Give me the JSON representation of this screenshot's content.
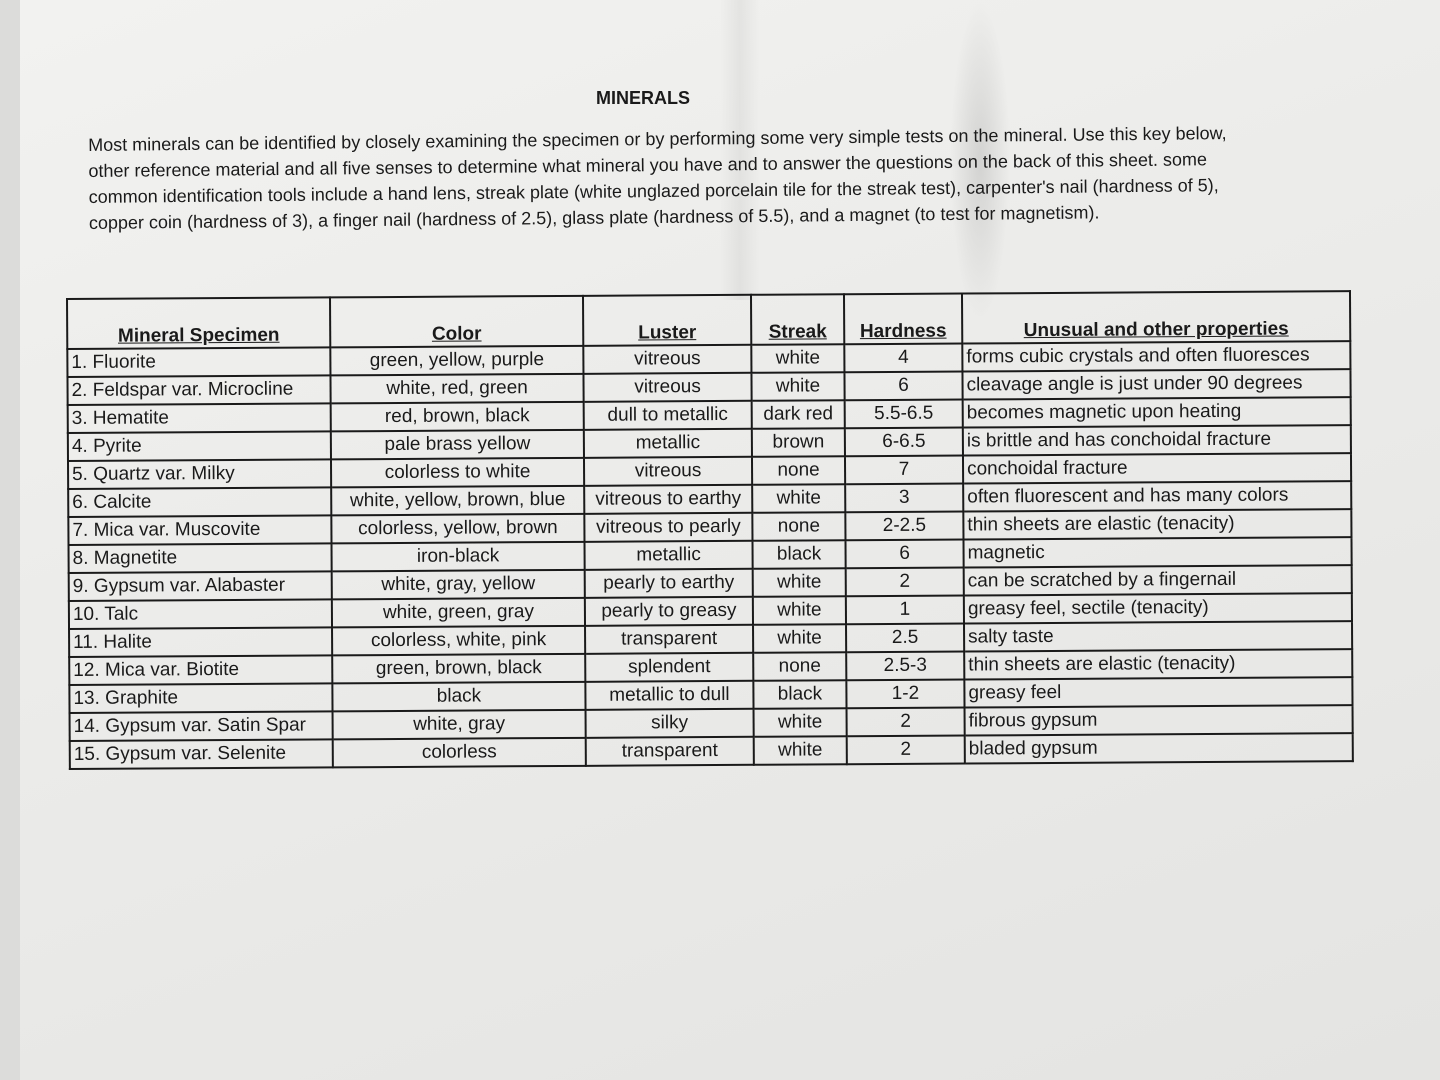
{
  "title": "MINERALS",
  "intro": "Most minerals can be identified by closely examining the specimen or by performing some very simple tests on the mineral. Use this key below, other reference material and all five senses to determine what mineral you have and to answer the questions on the back of this sheet. some common identification tools include a hand lens, streak plate (white unglazed porcelain tile for the streak test), carpenter's nail (hardness of 5), copper coin (hardness of 3), a finger nail (hardness of 2.5), glass plate (hardness of 5.5), and a magnet (to test for magnetism).",
  "table": {
    "headers": [
      "Mineral Specimen",
      "Color",
      "Luster",
      "Streak",
      "Hardness",
      "Unusual and other properties"
    ],
    "rows": [
      [
        "1. Fluorite",
        "green, yellow, purple",
        "vitreous",
        "white",
        "4",
        "forms cubic crystals and often fluoresces"
      ],
      [
        "2. Feldspar var. Microcline",
        "white, red, green",
        "vitreous",
        "white",
        "6",
        "cleavage angle is just under 90 degrees"
      ],
      [
        "3. Hematite",
        "red, brown, black",
        "dull to metallic",
        "dark red",
        "5.5-6.5",
        "becomes magnetic upon heating"
      ],
      [
        "4. Pyrite",
        "pale brass yellow",
        "metallic",
        "brown",
        "6-6.5",
        "is brittle and has conchoidal fracture"
      ],
      [
        "5. Quartz var. Milky",
        "colorless to white",
        "vitreous",
        "none",
        "7",
        "conchoidal fracture"
      ],
      [
        "6. Calcite",
        "white, yellow, brown, blue",
        "vitreous to earthy",
        "white",
        "3",
        "often fluorescent and has many colors"
      ],
      [
        "7. Mica var. Muscovite",
        "colorless, yellow, brown",
        "vitreous to pearly",
        "none",
        "2-2.5",
        "thin sheets are elastic (tenacity)"
      ],
      [
        "8. Magnetite",
        "iron-black",
        "metallic",
        "black",
        "6",
        "magnetic"
      ],
      [
        "9. Gypsum var. Alabaster",
        "white, gray, yellow",
        "pearly to earthy",
        "white",
        "2",
        "can be scratched by a fingernail"
      ],
      [
        "10. Talc",
        "white, green, gray",
        "pearly to greasy",
        "white",
        "1",
        "greasy feel, sectile (tenacity)"
      ],
      [
        "11. Halite",
        "colorless, white, pink",
        "transparent",
        "white",
        "2.5",
        "salty taste"
      ],
      [
        "12. Mica var. Biotite",
        "green, brown, black",
        "splendent",
        "none",
        "2.5-3",
        "thin sheets are elastic (tenacity)"
      ],
      [
        "13. Graphite",
        "black",
        "metallic to dull",
        "black",
        "1-2",
        "greasy feel"
      ],
      [
        "14. Gypsum var. Satin Spar",
        "white, gray",
        "silky",
        "white",
        "2",
        "fibrous gypsum"
      ],
      [
        "15. Gypsum var. Selenite",
        "colorless",
        "transparent",
        "white",
        "2",
        "bladed gypsum"
      ]
    ]
  }
}
